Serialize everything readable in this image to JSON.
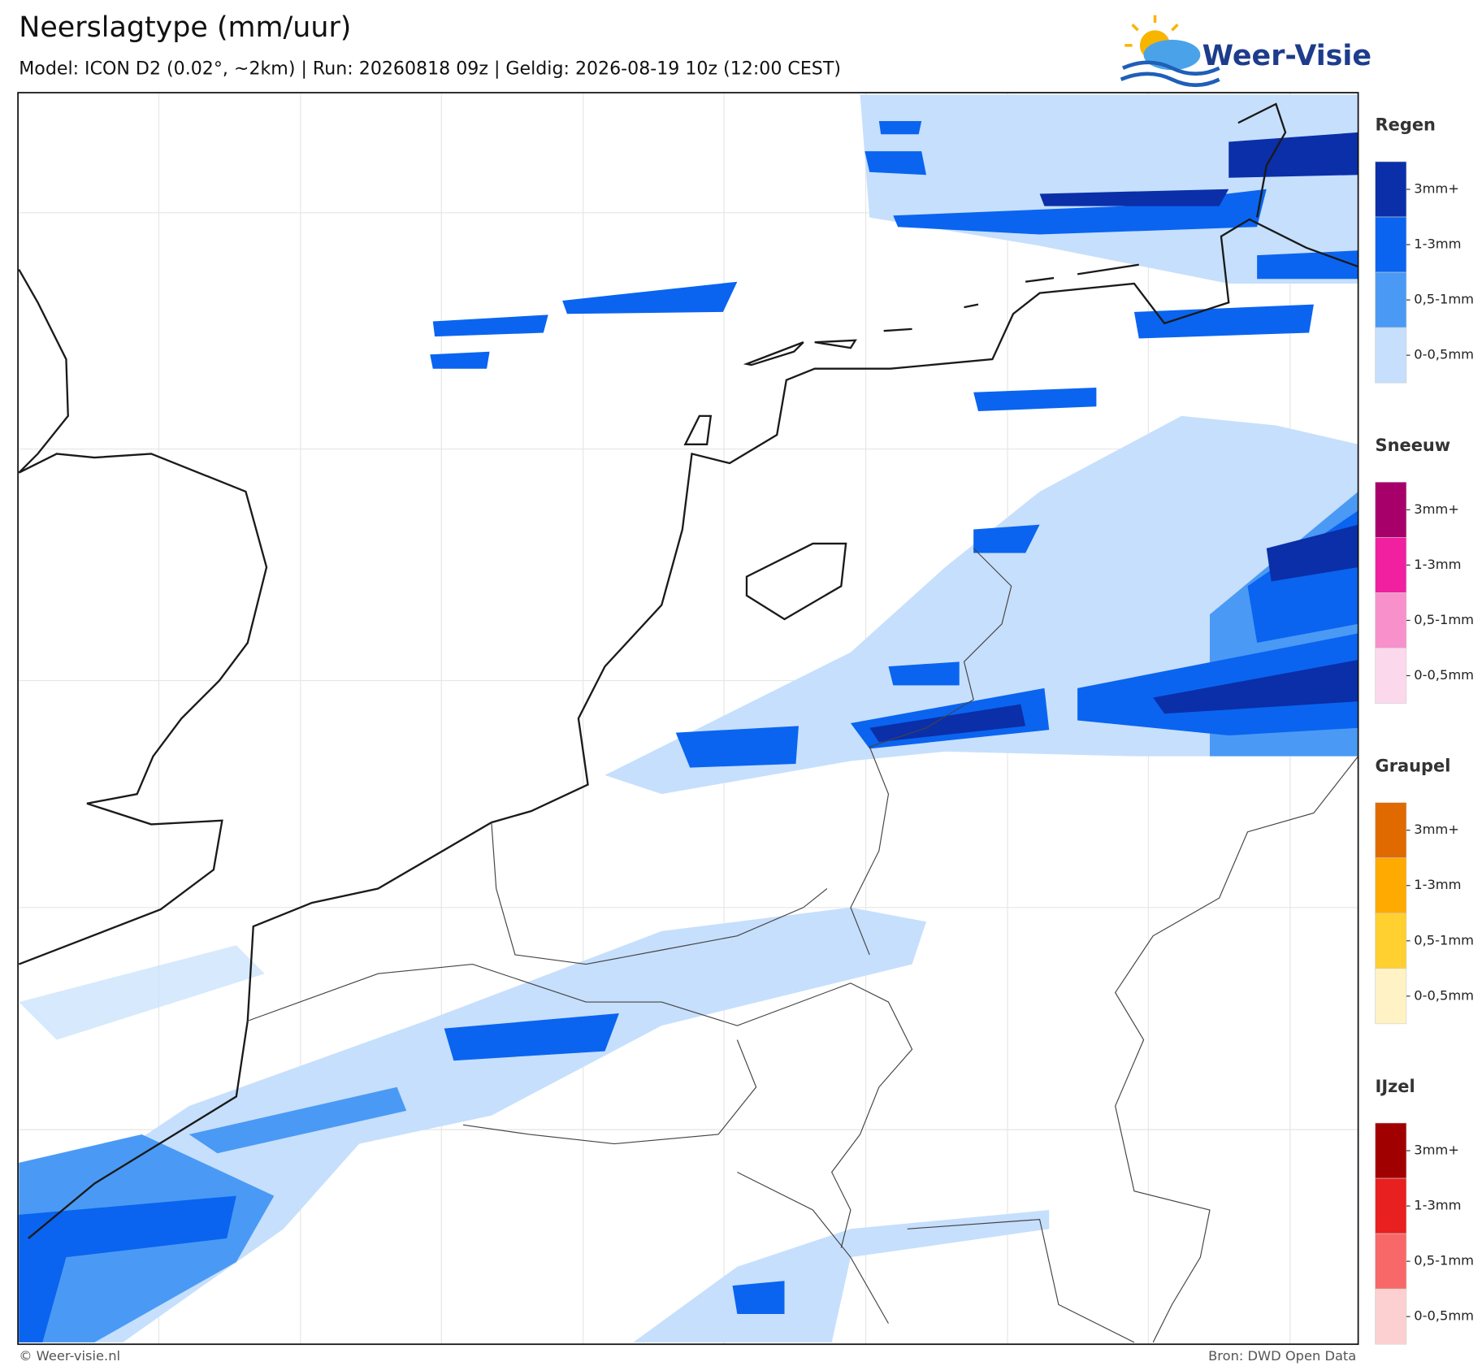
{
  "header": {
    "title": "Neerslagtype (mm/uur)",
    "subtitle": "Model: ICON D2 (0.02°, ~2km)  |  Run: 20260818 09z  |  Geldig: 2026-08-19 10z (12:00 CEST)"
  },
  "logo": {
    "text": "Weer-Visie"
  },
  "legend": {
    "groups": [
      {
        "title": "Regen",
        "items": [
          {
            "label": "3mm+",
            "color": "#0a2fa8"
          },
          {
            "label": "1-3mm",
            "color": "#0a64f0"
          },
          {
            "label": "0,5-1mm",
            "color": "#4a9af5"
          },
          {
            "label": "0-0,5mm",
            "color": "#c6dffc"
          }
        ]
      },
      {
        "title": "Sneeuw",
        "items": [
          {
            "label": "3mm+",
            "color": "#a8006a"
          },
          {
            "label": "1-3mm",
            "color": "#f020a0"
          },
          {
            "label": "0,5-1mm",
            "color": "#f890cc"
          },
          {
            "label": "0-0,5mm",
            "color": "#fcd8ec"
          }
        ]
      },
      {
        "title": "Graupel",
        "items": [
          {
            "label": "3mm+",
            "color": "#e06a00"
          },
          {
            "label": "1-3mm",
            "color": "#ffaa00"
          },
          {
            "label": "0,5-1mm",
            "color": "#ffd030"
          },
          {
            "label": "0-0,5mm",
            "color": "#fff2c4"
          }
        ]
      },
      {
        "title": "IJzel",
        "items": [
          {
            "label": "3mm+",
            "color": "#a00000"
          },
          {
            "label": "1-3mm",
            "color": "#e82020"
          },
          {
            "label": "0,5-1mm",
            "color": "#f86868"
          },
          {
            "label": "0-0,5mm",
            "color": "#fcd0d0"
          }
        ]
      }
    ]
  },
  "footer": {
    "left": "© Weer-visie.nl",
    "right": "Bron: DWD Open Data"
  }
}
